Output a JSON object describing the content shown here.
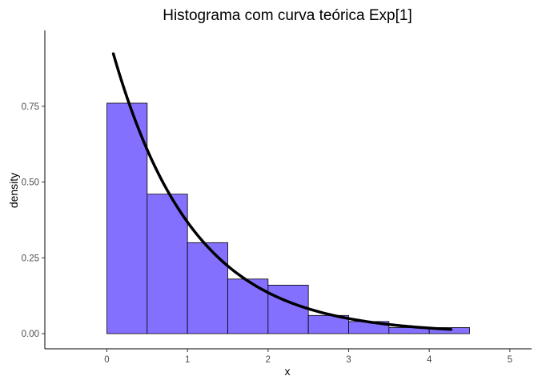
{
  "chart_data": {
    "type": "bar",
    "title": "Histograma com curva teórica Exp[1]",
    "xlabel": "x",
    "ylabel": "density",
    "xlim": [
      -0.77,
      5.27
    ],
    "ylim": [
      -0.05,
      1.0
    ],
    "x_ticks": [
      0,
      1,
      2,
      3,
      4,
      5
    ],
    "x_tick_labels": [
      "0",
      "1",
      "2",
      "3",
      "4",
      "5"
    ],
    "y_ticks": [
      0,
      0.25,
      0.5,
      0.75
    ],
    "y_tick_labels": [
      "0.00",
      "0.25",
      "0.50",
      "0.75"
    ],
    "grid": false,
    "bin_width": 0.5,
    "bins": [
      {
        "start": 0.0,
        "end": 0.5,
        "density": 0.76
      },
      {
        "start": 0.5,
        "end": 1.0,
        "density": 0.46
      },
      {
        "start": 1.0,
        "end": 1.5,
        "density": 0.3
      },
      {
        "start": 1.5,
        "end": 2.0,
        "density": 0.18
      },
      {
        "start": 2.0,
        "end": 2.5,
        "density": 0.16
      },
      {
        "start": 2.5,
        "end": 3.0,
        "density": 0.06
      },
      {
        "start": 3.0,
        "end": 3.5,
        "density": 0.04
      },
      {
        "start": 3.5,
        "end": 4.0,
        "density": 0.02
      },
      {
        "start": 4.0,
        "end": 4.5,
        "density": 0.02
      }
    ],
    "curve": {
      "function": "exp(-x)",
      "rate": 1,
      "x_range": [
        0.08,
        4.27
      ]
    },
    "colors": {
      "bar_fill": "#8470FF",
      "bar_stroke": "#000000",
      "curve": "#000000",
      "axis": "#000000"
    }
  }
}
